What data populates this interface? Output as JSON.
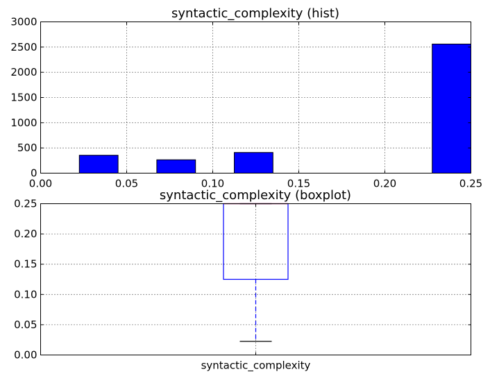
{
  "chart_data": [
    {
      "type": "bar",
      "title": "syntactic_complexity (hist)",
      "xlim": [
        0,
        0.25
      ],
      "ylim": [
        0,
        3000
      ],
      "xticks": [
        "0.00",
        "0.05",
        "0.10",
        "0.15",
        "0.20",
        "0.25"
      ],
      "yticks": [
        "0",
        "500",
        "1000",
        "1500",
        "2000",
        "2500",
        "3000"
      ],
      "grid": true,
      "bar_color": "#0000ff",
      "bins": [
        {
          "x0": 0.0225,
          "x1": 0.045,
          "value": 355
        },
        {
          "x0": 0.0675,
          "x1": 0.09,
          "value": 265
        },
        {
          "x0": 0.1125,
          "x1": 0.135,
          "value": 410
        },
        {
          "x0": 0.2275,
          "x1": 0.25,
          "value": 2560
        }
      ]
    },
    {
      "type": "boxplot",
      "title": "syntactic_complexity (boxplot)",
      "categories": [
        "syntactic_complexity"
      ],
      "ylim": [
        0,
        0.25
      ],
      "yticks": [
        "0.00",
        "0.05",
        "0.10",
        "0.15",
        "0.20",
        "0.25"
      ],
      "grid": true,
      "box_color": "#0000ff",
      "median_color": "#ff0000",
      "whisker_color": "#0000ff",
      "cap_color": "#000000",
      "stats": {
        "whislo": 0.0225,
        "q1": 0.125,
        "median": 0.25,
        "q3": 0.25,
        "whishi": 0.25
      }
    }
  ]
}
